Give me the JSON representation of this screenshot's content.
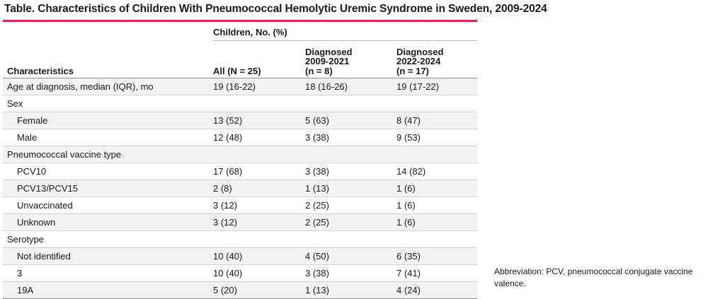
{
  "title": "Table. Characteristics of Children With Pneumococcal Hemolytic Uremic Syndrome in Sweden, 2009-2024",
  "colors": {
    "accent_rule": "#e0245e",
    "row_shade": "#f2f2f2"
  },
  "header": {
    "group_label": "Children, No. (%)",
    "columns": [
      {
        "lines": [
          "Characteristics"
        ]
      },
      {
        "lines": [
          "All (N = 25)"
        ]
      },
      {
        "lines": [
          "Diagnosed",
          "2009-2021",
          "(n = 8)"
        ]
      },
      {
        "lines": [
          "Diagnosed",
          "2022-2024",
          "(n = 17)"
        ]
      }
    ]
  },
  "rows": [
    {
      "label": "Age at diagnosis, median (IQR), mo",
      "indent": false,
      "values": [
        "19 (16-22)",
        "18 (16-26)",
        "19 (17-22)"
      ]
    },
    {
      "label": "Sex",
      "indent": false,
      "values": [
        "",
        "",
        ""
      ]
    },
    {
      "label": "Female",
      "indent": true,
      "values": [
        "13 (52)",
        "5 (63)",
        "8 (47)"
      ]
    },
    {
      "label": "Male",
      "indent": true,
      "values": [
        "12 (48)",
        "3 (38)",
        "9 (53)"
      ]
    },
    {
      "label": "Pneumococcal vaccine type",
      "indent": false,
      "values": [
        "",
        "",
        ""
      ]
    },
    {
      "label": "PCV10",
      "indent": true,
      "values": [
        "17 (68)",
        "3 (38)",
        "14 (82)"
      ]
    },
    {
      "label": "PCV13/PCV15",
      "indent": true,
      "values": [
        "2 (8)",
        "1 (13)",
        "1 (6)"
      ]
    },
    {
      "label": "Unvaccinated",
      "indent": true,
      "values": [
        "3 (12)",
        "2 (25)",
        "1 (6)"
      ]
    },
    {
      "label": "Unknown",
      "indent": true,
      "values": [
        "3 (12)",
        "2 (25)",
        "1 (6)"
      ]
    },
    {
      "label": "Serotype",
      "indent": false,
      "values": [
        "",
        "",
        ""
      ]
    },
    {
      "label": "Not identified",
      "indent": true,
      "values": [
        "10 (40)",
        "4 (50)",
        "6 (35)"
      ]
    },
    {
      "label": "3",
      "indent": true,
      "values": [
        "10 (40)",
        "3 (38)",
        "7 (41)"
      ]
    },
    {
      "label": "19A",
      "indent": true,
      "values": [
        "5 (20)",
        "1 (13)",
        "4 (24)"
      ]
    }
  ],
  "footnote": "Abbreviation: PCV, pneumococcal conjugate vaccine valence."
}
